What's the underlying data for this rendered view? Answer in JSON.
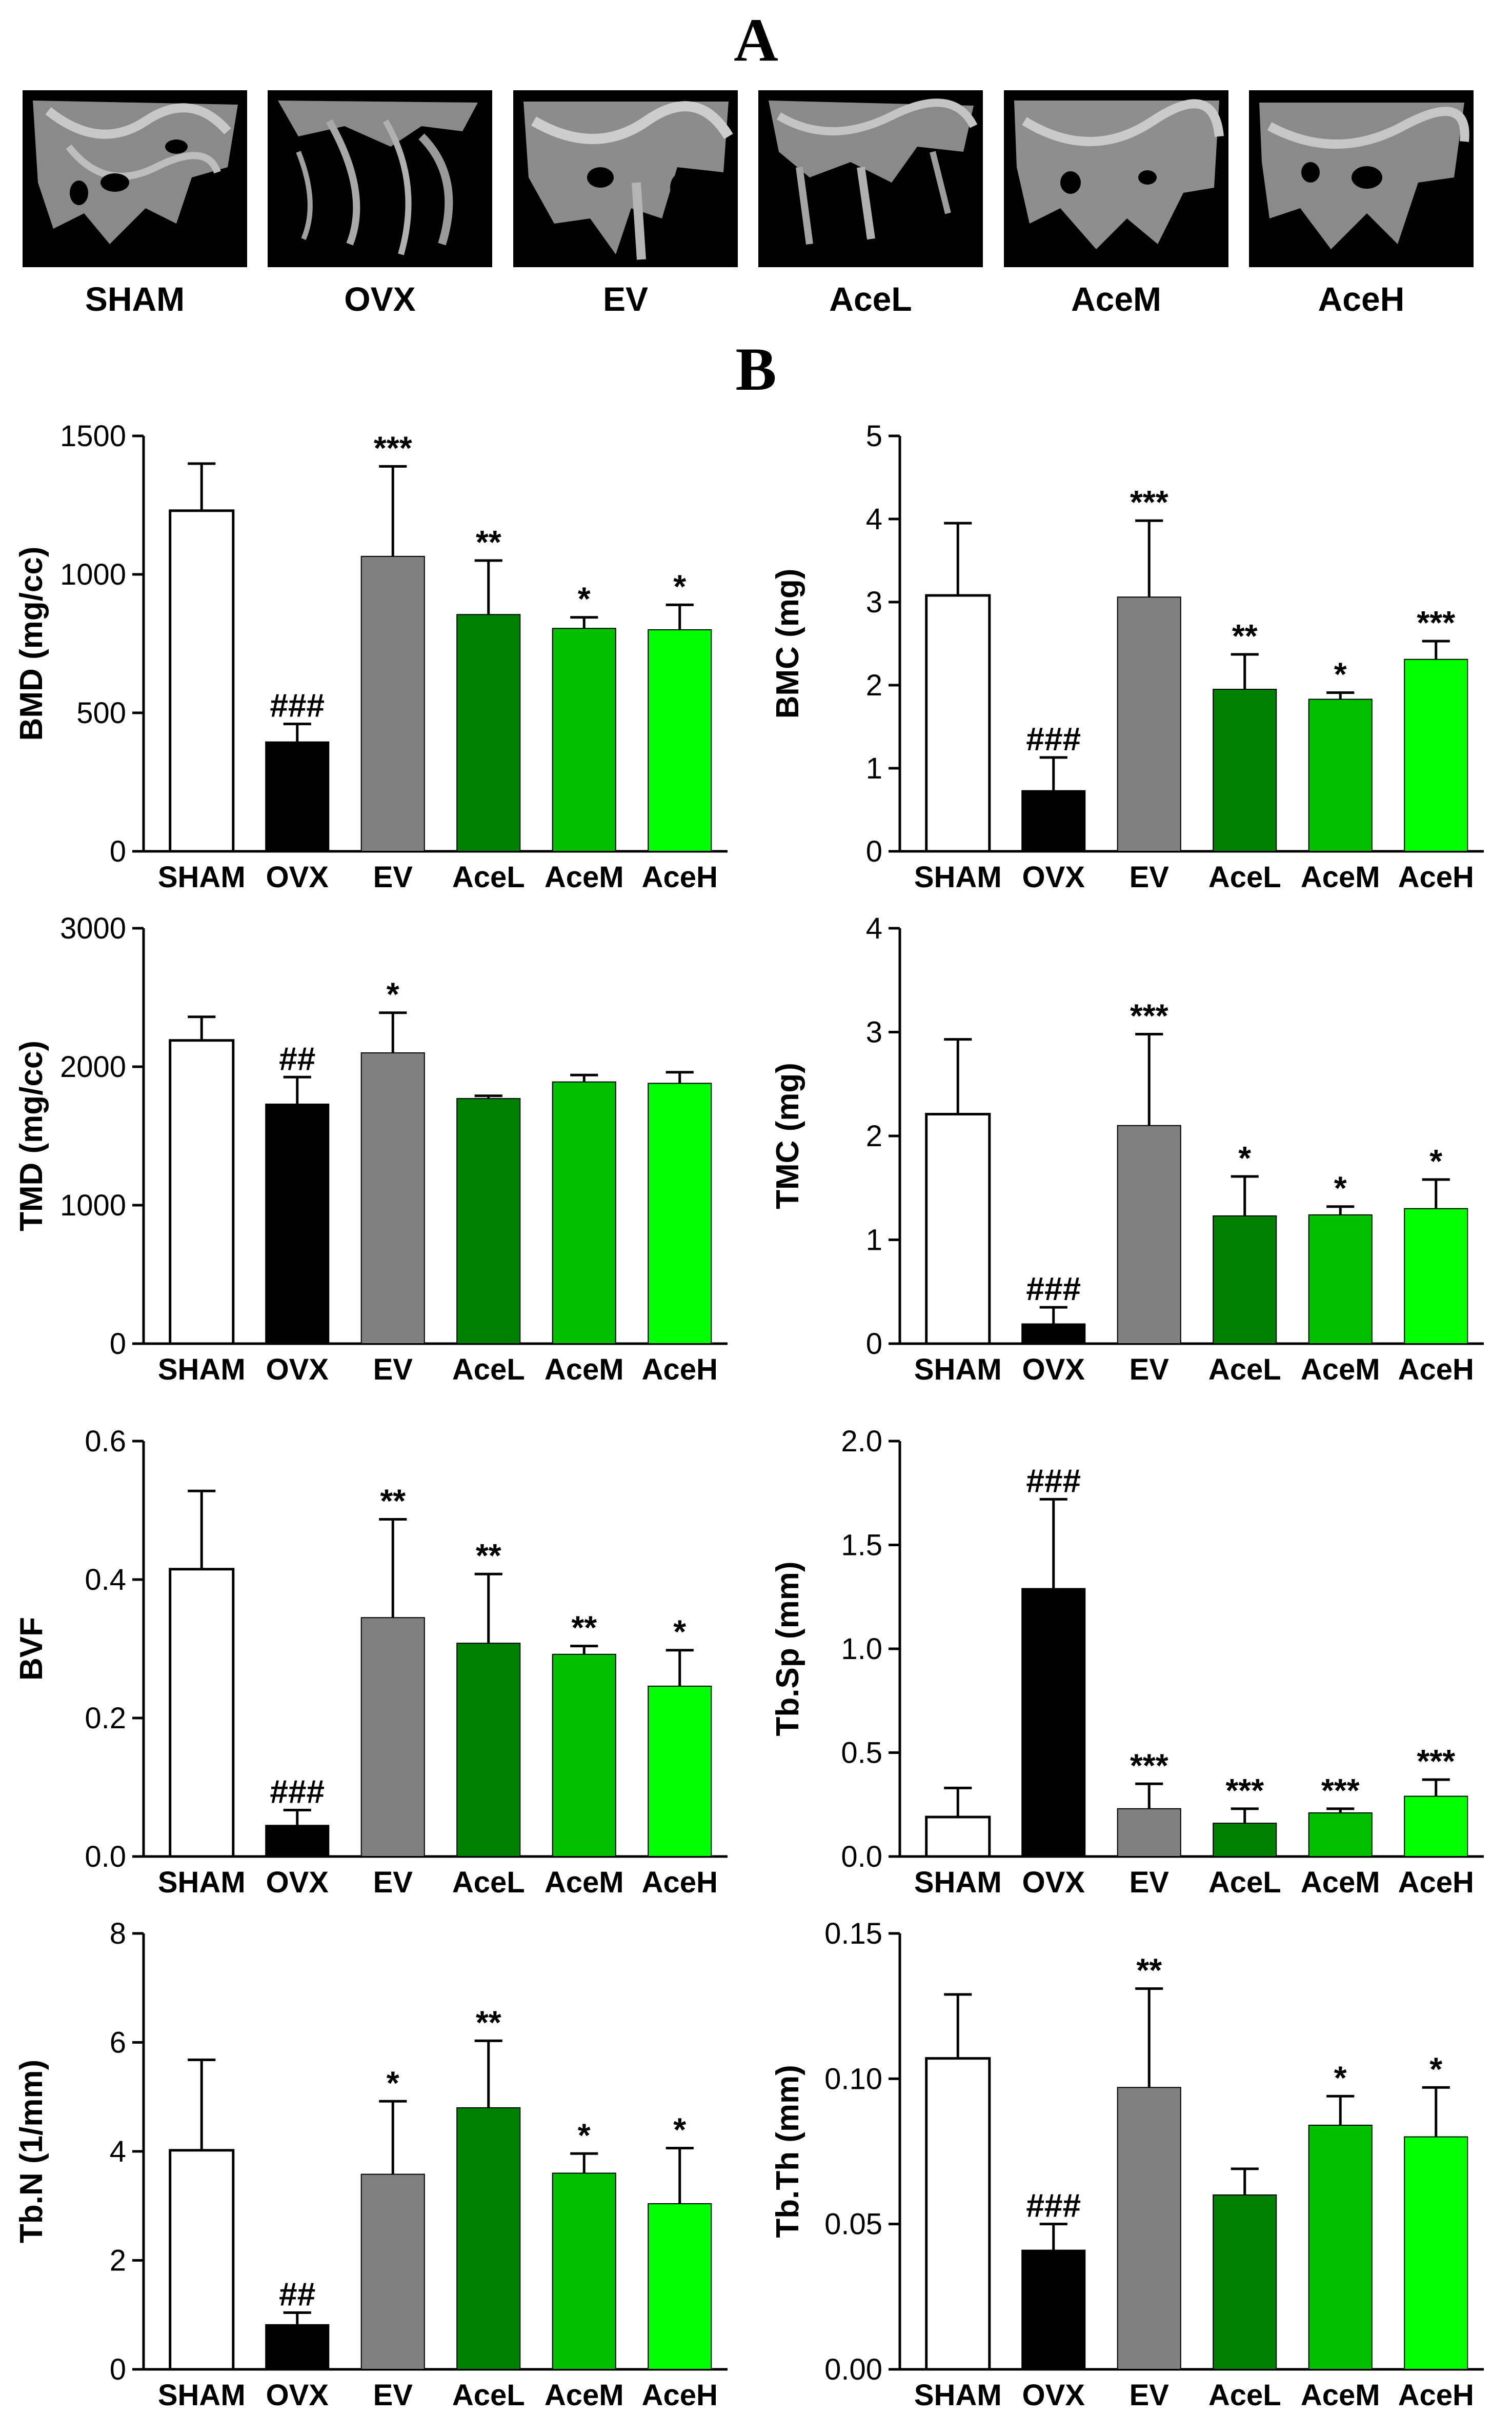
{
  "panel_labels": {
    "a": "A",
    "b": "B"
  },
  "groups": [
    "SHAM",
    "OVX",
    "EV",
    "AceL",
    "AceM",
    "AceH"
  ],
  "colors": [
    "#ffffff",
    "#000000",
    "#808080",
    "#008000",
    "#00c000",
    "#00ff00"
  ],
  "chart_data": [
    {
      "type": "bar",
      "ylabel": "BMD (mg/cc)",
      "ylim": [
        0,
        1500
      ],
      "ticks": [
        "0",
        "500",
        "1000",
        "1500"
      ],
      "categories": [
        "SHAM",
        "OVX",
        "EV",
        "AceL",
        "AceM",
        "AceH"
      ],
      "values": [
        1230,
        395,
        1065,
        855,
        805,
        800
      ],
      "errors": [
        170,
        65,
        325,
        195,
        40,
        90
      ],
      "annotations": [
        "",
        "###",
        "***",
        "**",
        "*",
        "*"
      ]
    },
    {
      "type": "bar",
      "ylabel": "BMC (mg)",
      "ylim": [
        0,
        5
      ],
      "ticks": [
        "0",
        "1",
        "2",
        "3",
        "4",
        "5"
      ],
      "categories": [
        "SHAM",
        "OVX",
        "EV",
        "AceL",
        "AceM",
        "AceH"
      ],
      "values": [
        3.08,
        0.73,
        3.06,
        1.95,
        1.83,
        2.31
      ],
      "errors": [
        0.87,
        0.4,
        0.92,
        0.42,
        0.08,
        0.22
      ],
      "annotations": [
        "",
        "###",
        "***",
        "**",
        "*",
        "***"
      ]
    },
    {
      "type": "bar",
      "ylabel": "TMD (mg/cc)",
      "ylim": [
        0,
        3000
      ],
      "ticks": [
        "0",
        "1000",
        "2000",
        "3000"
      ],
      "categories": [
        "SHAM",
        "OVX",
        "EV",
        "AceL",
        "AceM",
        "AceH"
      ],
      "values": [
        2190,
        1730,
        2100,
        1770,
        1890,
        1880
      ],
      "errors": [
        170,
        195,
        290,
        20,
        50,
        80
      ],
      "annotations": [
        "",
        "##",
        "*",
        "",
        "",
        ""
      ]
    },
    {
      "type": "bar",
      "ylabel": "TMC (mg)",
      "ylim": [
        0,
        4
      ],
      "ticks": [
        "0",
        "1",
        "2",
        "3",
        "4"
      ],
      "categories": [
        "SHAM",
        "OVX",
        "EV",
        "AceL",
        "AceM",
        "AceH"
      ],
      "values": [
        2.21,
        0.19,
        2.1,
        1.23,
        1.24,
        1.3
      ],
      "errors": [
        0.72,
        0.16,
        0.88,
        0.38,
        0.08,
        0.28
      ],
      "annotations": [
        "",
        "###",
        "***",
        "*",
        "*",
        "*"
      ]
    },
    {
      "type": "bar",
      "ylabel": "BVF",
      "ylim": [
        0,
        0.6
      ],
      "ticks": [
        "0.0",
        "0.2",
        "0.4",
        "0.6"
      ],
      "categories": [
        "SHAM",
        "OVX",
        "EV",
        "AceL",
        "AceM",
        "AceH"
      ],
      "values": [
        0.415,
        0.045,
        0.345,
        0.308,
        0.292,
        0.246
      ],
      "errors": [
        0.113,
        0.022,
        0.142,
        0.1,
        0.012,
        0.052
      ],
      "annotations": [
        "",
        "###",
        "**",
        "**",
        "**",
        "*"
      ]
    },
    {
      "type": "bar",
      "ylabel": "Tb.Sp (mm)",
      "ylim": [
        0,
        2.0
      ],
      "ticks": [
        "0.0",
        "0.5",
        "1.0",
        "1.5",
        "2.0"
      ],
      "categories": [
        "SHAM",
        "OVX",
        "EV",
        "AceL",
        "AceM",
        "AceH"
      ],
      "values": [
        0.19,
        1.29,
        0.23,
        0.16,
        0.21,
        0.29
      ],
      "errors": [
        0.14,
        0.43,
        0.12,
        0.07,
        0.02,
        0.08
      ],
      "annotations": [
        "",
        "###",
        "***",
        "***",
        "***",
        "***"
      ]
    },
    {
      "type": "bar",
      "ylabel": "Tb.N (1/mm)",
      "ylim": [
        0,
        8
      ],
      "ticks": [
        "0",
        "2",
        "4",
        "6",
        "8"
      ],
      "categories": [
        "SHAM",
        "OVX",
        "EV",
        "AceL",
        "AceM",
        "AceH"
      ],
      "values": [
        4.02,
        0.82,
        3.58,
        4.8,
        3.6,
        3.04
      ],
      "errors": [
        1.66,
        0.22,
        1.34,
        1.23,
        0.36,
        1.02
      ],
      "annotations": [
        "",
        "##",
        "*",
        "**",
        "*",
        "*"
      ]
    },
    {
      "type": "bar",
      "ylabel": "Tb.Th (mm)",
      "ylim": [
        0,
        0.15
      ],
      "ticks": [
        "0.00",
        "0.05",
        "0.10",
        "0.15"
      ],
      "categories": [
        "SHAM",
        "OVX",
        "EV",
        "AceL",
        "AceM",
        "AceH"
      ],
      "values": [
        0.107,
        0.041,
        0.097,
        0.06,
        0.084,
        0.08
      ],
      "errors": [
        0.022,
        0.009,
        0.034,
        0.009,
        0.01,
        0.017
      ],
      "annotations": [
        "",
        "###",
        "**",
        "",
        "*",
        "*"
      ]
    }
  ]
}
